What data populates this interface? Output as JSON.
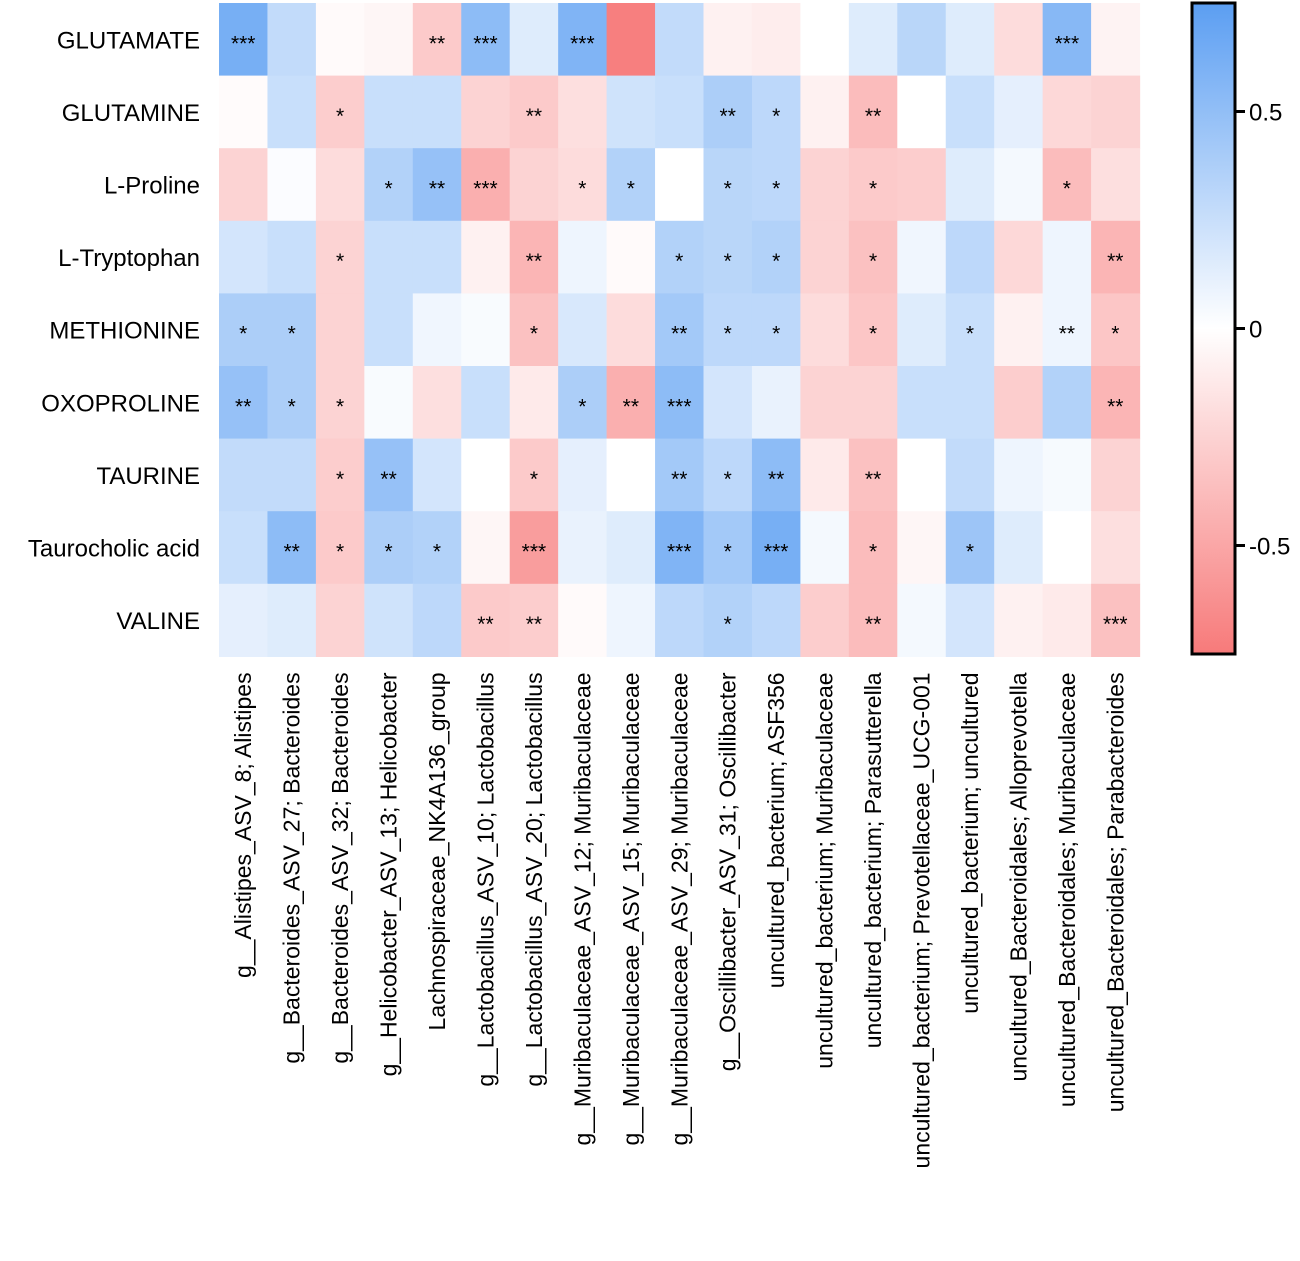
{
  "chart_data": {
    "type": "heatmap",
    "title": "",
    "rows": [
      "GLUTAMATE",
      "GLUTAMINE",
      "L-Proline",
      "L-Tryptophan",
      "METHIONINE",
      "OXOPROLINE",
      "TAURINE",
      "Taurocholic acid",
      "VALINE"
    ],
    "columns": [
      "g__Alistipes_ASV_8; Alistipes",
      "g__Bacteroides_ASV_27; Bacteroides",
      "g__Bacteroides_ASV_32; Bacteroides",
      "g__Helicobacter_ASV_13; Helicobacter",
      "Lachnospiraceae_NK4A136_group",
      "g__Lactobacillus_ASV_10; Lactobacillus",
      "g__Lactobacillus_ASV_20; Lactobacillus",
      "g__Muribaculaceae_ASV_12; Muribaculaceae",
      "g__Muribaculaceae_ASV_15; Muribaculaceae",
      "g__Muribaculaceae_ASV_29; Muribaculaceae",
      "g__Oscillibacter_ASV_31; Oscillibacter",
      "uncultured_bacterium; ASF356",
      "uncultured_bacterium; Muribaculaceae",
      "uncultured_bacterium; Parasutterella",
      "uncultured_bacterium; Prevotellaceae_UCG-001",
      "uncultured_bacterium; uncultured",
      "uncultured_Bacteroidales; Alloprevotella",
      "uncultured_Bacteroidales; Muribaculaceae",
      "uncultured_Bacteroidales; Parabacteroides"
    ],
    "values": [
      [
        0.62,
        0.28,
        -0.03,
        -0.05,
        -0.3,
        0.52,
        0.15,
        0.58,
        -0.72,
        0.28,
        -0.08,
        -0.1,
        0.0,
        0.15,
        0.32,
        0.15,
        -0.2,
        0.55,
        -0.07
      ],
      [
        -0.02,
        0.25,
        -0.28,
        0.25,
        0.25,
        -0.25,
        -0.3,
        -0.18,
        0.22,
        0.25,
        0.38,
        0.3,
        -0.08,
        -0.38,
        0.0,
        0.25,
        0.12,
        -0.22,
        -0.25
      ],
      [
        -0.25,
        0.02,
        -0.2,
        0.35,
        0.48,
        -0.45,
        -0.25,
        -0.2,
        0.35,
        0.0,
        0.32,
        0.3,
        -0.25,
        -0.3,
        -0.28,
        0.15,
        0.05,
        -0.38,
        -0.18
      ],
      [
        0.2,
        0.25,
        -0.25,
        0.25,
        0.25,
        -0.08,
        -0.42,
        0.08,
        -0.03,
        0.35,
        0.32,
        0.35,
        -0.25,
        -0.35,
        0.07,
        0.3,
        -0.22,
        0.08,
        -0.42
      ],
      [
        0.38,
        0.38,
        -0.25,
        0.25,
        0.07,
        0.03,
        -0.35,
        0.18,
        -0.2,
        0.42,
        0.3,
        0.3,
        -0.2,
        -0.32,
        0.15,
        0.25,
        -0.08,
        0.08,
        -0.32
      ],
      [
        0.48,
        0.38,
        -0.25,
        0.03,
        -0.18,
        0.25,
        -0.12,
        0.38,
        -0.45,
        0.52,
        0.2,
        0.1,
        -0.25,
        -0.25,
        0.25,
        0.25,
        -0.28,
        0.35,
        -0.42
      ],
      [
        0.28,
        0.28,
        -0.28,
        0.48,
        0.2,
        0.0,
        -0.3,
        0.12,
        0.0,
        0.42,
        0.3,
        0.52,
        -0.12,
        -0.35,
        0.0,
        0.28,
        0.08,
        0.04,
        -0.25
      ],
      [
        0.25,
        0.52,
        -0.3,
        0.38,
        0.35,
        -0.05,
        -0.55,
        0.1,
        0.15,
        0.58,
        0.42,
        0.62,
        0.05,
        -0.38,
        -0.05,
        0.45,
        0.15,
        0.0,
        -0.18
      ],
      [
        0.12,
        0.15,
        -0.25,
        0.22,
        0.3,
        -0.3,
        -0.28,
        -0.03,
        0.08,
        0.3,
        0.35,
        0.3,
        -0.28,
        -0.38,
        0.05,
        0.2,
        -0.08,
        -0.12,
        -0.35
      ]
    ],
    "significance": [
      [
        "***",
        "",
        "",
        "",
        "**",
        "***",
        "",
        "***",
        "",
        "",
        "",
        "",
        "",
        "",
        "",
        "",
        "",
        "***",
        ""
      ],
      [
        "",
        "",
        "*",
        "",
        "",
        "",
        "**",
        "",
        "",
        "",
        "**",
        "*",
        "",
        "**",
        "",
        "",
        "",
        "",
        ""
      ],
      [
        "",
        "",
        "",
        "*",
        "**",
        "***",
        "",
        "*",
        "*",
        "",
        "*",
        "*",
        "",
        "*",
        "",
        "",
        "",
        "*",
        ""
      ],
      [
        "",
        "",
        "*",
        "",
        "",
        "",
        "**",
        "",
        "",
        "*",
        "*",
        "*",
        "",
        "*",
        "",
        "",
        "",
        "",
        "**"
      ],
      [
        "*",
        "*",
        "",
        "",
        "",
        "",
        "*",
        "",
        "",
        "**",
        "*",
        "*",
        "",
        "*",
        "",
        "*",
        "",
        "**",
        "*"
      ],
      [
        "**",
        "*",
        "*",
        "",
        "",
        "",
        "",
        "*",
        "**",
        "***",
        "",
        "",
        "",
        "",
        "",
        "",
        "",
        "",
        "**"
      ],
      [
        "",
        "",
        "*",
        "**",
        "",
        "",
        "*",
        "",
        "",
        "**",
        "*",
        "**",
        "",
        "**",
        "",
        "",
        "",
        "",
        ""
      ],
      [
        "",
        "**",
        "*",
        "*",
        "*",
        "",
        "***",
        "",
        "",
        "***",
        "*",
        "***",
        "",
        "*",
        "",
        "*",
        "",
        "",
        ""
      ],
      [
        "",
        "",
        "",
        "",
        "",
        "**",
        "**",
        "",
        "",
        "",
        "*",
        "",
        "",
        "**",
        "",
        "",
        "",
        "",
        "***"
      ]
    ],
    "colorbar": {
      "range": [
        -0.75,
        0.75
      ],
      "ticks": [
        0.5,
        0,
        -0.5
      ],
      "tick_labels": [
        "0.5",
        "0",
        "-0.5"
      ],
      "min_color": "#f77a7a",
      "mid_color": "#ffffff",
      "max_color": "#5b9ef2"
    }
  }
}
